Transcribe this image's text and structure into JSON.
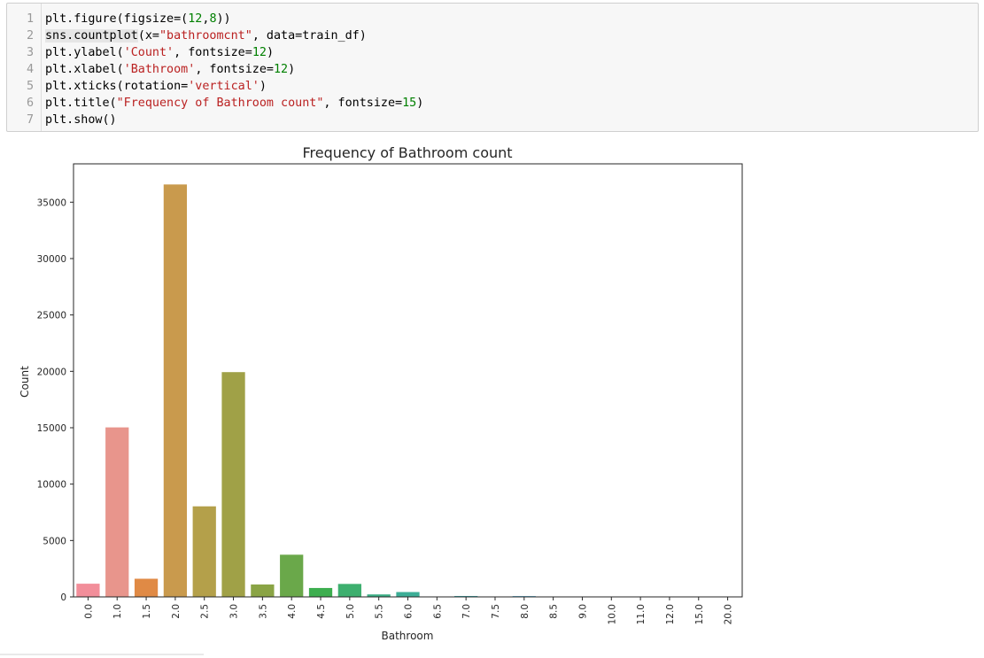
{
  "code_cell": {
    "lines": [
      {
        "n": "1",
        "parts": [
          {
            "t": "plt.figure(figsize=("
          },
          {
            "t": "12",
            "c": "num"
          },
          {
            "t": ","
          },
          {
            "t": "8",
            "c": "num"
          },
          {
            "t": "))"
          }
        ]
      },
      {
        "n": "2",
        "parts": [
          {
            "t": "sns.countplot",
            "c": "hl"
          },
          {
            "t": "(x="
          },
          {
            "t": "\"bathroomcnt\"",
            "c": "str"
          },
          {
            "t": ", data=train_df)"
          }
        ]
      },
      {
        "n": "3",
        "parts": [
          {
            "t": "plt.ylabel("
          },
          {
            "t": "'Count'",
            "c": "str"
          },
          {
            "t": ", fontsize="
          },
          {
            "t": "12",
            "c": "num"
          },
          {
            "t": ")"
          }
        ]
      },
      {
        "n": "4",
        "parts": [
          {
            "t": "plt.xlabel("
          },
          {
            "t": "'Bathroom'",
            "c": "str"
          },
          {
            "t": ", fontsize="
          },
          {
            "t": "12",
            "c": "num"
          },
          {
            "t": ")"
          }
        ]
      },
      {
        "n": "5",
        "parts": [
          {
            "t": "plt.xticks(rotation="
          },
          {
            "t": "'vertical'",
            "c": "str"
          },
          {
            "t": ")"
          }
        ]
      },
      {
        "n": "6",
        "parts": [
          {
            "t": "plt.title("
          },
          {
            "t": "\"Frequency of Bathroom count\"",
            "c": "str"
          },
          {
            "t": ", fontsize="
          },
          {
            "t": "15",
            "c": "num"
          },
          {
            "t": ")"
          }
        ]
      },
      {
        "n": "7",
        "parts": [
          {
            "t": "plt.show()"
          }
        ]
      }
    ]
  },
  "chart_data": {
    "type": "bar",
    "title": "Frequency of Bathroom count",
    "xlabel": "Bathroom",
    "ylabel": "Count",
    "ylim": [
      0,
      38400
    ],
    "yticks": [
      0,
      5000,
      10000,
      15000,
      20000,
      25000,
      30000,
      35000
    ],
    "grid": false,
    "categories": [
      "0.0",
      "1.0",
      "1.5",
      "2.0",
      "2.5",
      "3.0",
      "3.5",
      "4.0",
      "4.5",
      "5.0",
      "5.5",
      "6.0",
      "6.5",
      "7.0",
      "7.5",
      "8.0",
      "8.5",
      "9.0",
      "10.0",
      "11.0",
      "12.0",
      "15.0",
      "20.0"
    ],
    "values": [
      1170,
      15030,
      1610,
      36570,
      8030,
      19930,
      1100,
      3740,
      790,
      1150,
      220,
      430,
      20,
      80,
      10,
      70,
      5,
      10,
      5,
      3,
      2,
      1,
      1
    ],
    "colors": [
      "#f28e9a",
      "#e8958c",
      "#e08a45",
      "#c99a4d",
      "#b4a04a",
      "#a0a147",
      "#8aa445",
      "#6aa84a",
      "#3dae4f",
      "#3daf6e",
      "#3caf85",
      "#3cad96",
      "#3eaca2",
      "#3eaaad",
      "#41a8bc",
      "#47a5cb",
      "#5ba1d8",
      "#8799e0",
      "#a591e4",
      "#c286e0",
      "#d67cd5",
      "#e477c3",
      "#ec7aaf"
    ]
  }
}
